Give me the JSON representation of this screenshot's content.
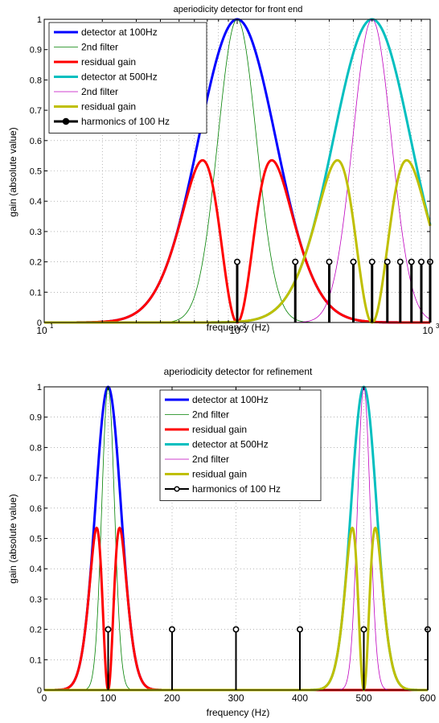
{
  "chart_data": [
    {
      "type": "line",
      "title": "aperiodicity detector for front end",
      "xlabel": "frequency (Hz)",
      "ylabel": "gain (absolute value)",
      "xscale": "log",
      "xlim": [
        10,
        1000
      ],
      "ylim": [
        0,
        1
      ],
      "xticks": [
        10,
        100,
        1000
      ],
      "xtick_bases": [
        "10",
        "10",
        "10"
      ],
      "xtick_exps": [
        "1",
        "2",
        "3"
      ],
      "yticks": [
        0,
        0.1,
        0.2,
        0.3,
        0.4,
        0.5,
        0.6,
        0.7,
        0.8,
        0.9,
        1
      ],
      "ytick_labels": [
        "0",
        "0.1",
        "0.2",
        "0.3",
        "0.4",
        "0.5",
        "0.6",
        "0.7",
        "0.8",
        "0.9",
        "1"
      ],
      "grid": true,
      "legend_position": "top-left",
      "series": [
        {
          "name": "detector at 100Hz",
          "color": "#0000ff",
          "center": 100,
          "sigma": 0.2,
          "role": "detector"
        },
        {
          "name": "2nd filter",
          "color": "#008000",
          "center": 100,
          "sigma": 0.1,
          "role": "filter"
        },
        {
          "name": "residual gain",
          "color": "#ff0000",
          "center": 100,
          "sigma": 0.2,
          "role": "residual"
        },
        {
          "name": "detector at 500Hz",
          "color": "#00bfbf",
          "center": 500,
          "sigma": 0.2,
          "role": "detector"
        },
        {
          "name": "2nd filter",
          "color": "#bf00bf",
          "center": 500,
          "sigma": 0.1,
          "role": "filter"
        },
        {
          "name": "residual gain",
          "color": "#bfbf00",
          "center": 500,
          "sigma": 0.2,
          "role": "residual"
        }
      ],
      "harmonics": {
        "name": "harmonics of 100 Hz",
        "x": [
          100,
          200,
          300,
          400,
          500,
          600,
          700,
          800,
          900,
          1000
        ],
        "y": 0.2,
        "color": "#000000"
      }
    },
    {
      "type": "line",
      "title": "aperiodicity detector for refinement",
      "xlabel": "frequency (Hz)",
      "ylabel": "gain (absolute value)",
      "xscale": "linear",
      "xlim": [
        0,
        600
      ],
      "ylim": [
        0,
        1
      ],
      "xticks": [
        0,
        100,
        200,
        300,
        400,
        500,
        600
      ],
      "xtick_labels": [
        "0",
        "100",
        "200",
        "300",
        "400",
        "500",
        "600"
      ],
      "yticks": [
        0,
        0.1,
        0.2,
        0.3,
        0.4,
        0.5,
        0.6,
        0.7,
        0.8,
        0.9,
        1
      ],
      "ytick_labels": [
        "0",
        "0.1",
        "0.2",
        "0.3",
        "0.4",
        "0.5",
        "0.6",
        "0.7",
        "0.8",
        "0.9",
        "1"
      ],
      "grid": true,
      "legend_position": "top-center",
      "series": [
        {
          "name": "detector at 100Hz",
          "color": "#0000ff",
          "center": 100,
          "sigma": 20,
          "role": "detector"
        },
        {
          "name": "2nd filter",
          "color": "#008000",
          "center": 100,
          "sigma": 10,
          "role": "filter"
        },
        {
          "name": "residual gain",
          "color": "#ff0000",
          "center": 100,
          "sigma": 20,
          "role": "residual"
        },
        {
          "name": "detector at 500Hz",
          "color": "#00bfbf",
          "center": 500,
          "sigma": 20,
          "role": "detector"
        },
        {
          "name": "2nd filter",
          "color": "#bf00bf",
          "center": 500,
          "sigma": 10,
          "role": "filter"
        },
        {
          "name": "residual gain",
          "color": "#bfbf00",
          "center": 500,
          "sigma": 20,
          "role": "residual"
        }
      ],
      "harmonics": {
        "name": "harmonics of 100 Hz",
        "x": [
          100,
          200,
          300,
          400,
          500,
          600
        ],
        "y": 0.2,
        "color": "#000000"
      }
    }
  ]
}
